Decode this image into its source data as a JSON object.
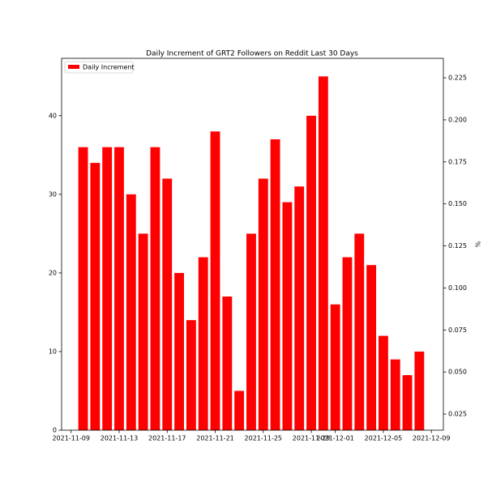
{
  "chart_data": {
    "type": "bar",
    "title": "Daily Increment of GRT2 Followers on Reddit Last 30 Days",
    "x": [
      "2021-11-10",
      "2021-11-11",
      "2021-11-12",
      "2021-11-13",
      "2021-11-14",
      "2021-11-15",
      "2021-11-16",
      "2021-11-17",
      "2021-11-18",
      "2021-11-19",
      "2021-11-20",
      "2021-11-21",
      "2021-11-22",
      "2021-11-23",
      "2021-11-24",
      "2021-11-25",
      "2021-11-26",
      "2021-11-27",
      "2021-11-28",
      "2021-11-29",
      "2021-11-30",
      "2021-12-01",
      "2021-12-02",
      "2021-12-03",
      "2021-12-04",
      "2021-12-05",
      "2021-12-06",
      "2021-12-07",
      "2021-12-08"
    ],
    "series": [
      {
        "name": "Daily Increment",
        "color": "#ff0000",
        "values": [
          36,
          34,
          36,
          36,
          30,
          25,
          36,
          32,
          20,
          14,
          22,
          38,
          17,
          5,
          25,
          32,
          37,
          29,
          31,
          40,
          45,
          16,
          22,
          25,
          21,
          12,
          9,
          7,
          10
        ]
      }
    ],
    "xlim": [
      "2021-11-08T05:00",
      "2021-12-10T00:00"
    ],
    "xticks": [
      "2021-11-09",
      "2021-11-13",
      "2021-11-17",
      "2021-11-21",
      "2021-11-25",
      "2021-11-29",
      "2021-12-01",
      "2021-12-05",
      "2021-12-09"
    ],
    "ylim": [
      0,
      47.3
    ],
    "yticks": [
      0,
      10,
      20,
      30,
      40
    ],
    "y2label": "%",
    "y2lim": [
      0.0154,
      0.2366
    ],
    "y2ticks": [
      {
        "value": 0.025,
        "label": "0.025"
      },
      {
        "value": 0.05,
        "label": "0.050"
      },
      {
        "value": 0.075,
        "label": "0.075"
      },
      {
        "value": 0.1,
        "label": "0.100"
      },
      {
        "value": 0.125,
        "label": "0.125"
      },
      {
        "value": 0.15,
        "label": "0.150"
      },
      {
        "value": 0.175,
        "label": "0.175"
      },
      {
        "value": 0.2,
        "label": "0.200"
      },
      {
        "value": 0.225,
        "label": "0.225"
      }
    ],
    "legend": "upper left"
  }
}
